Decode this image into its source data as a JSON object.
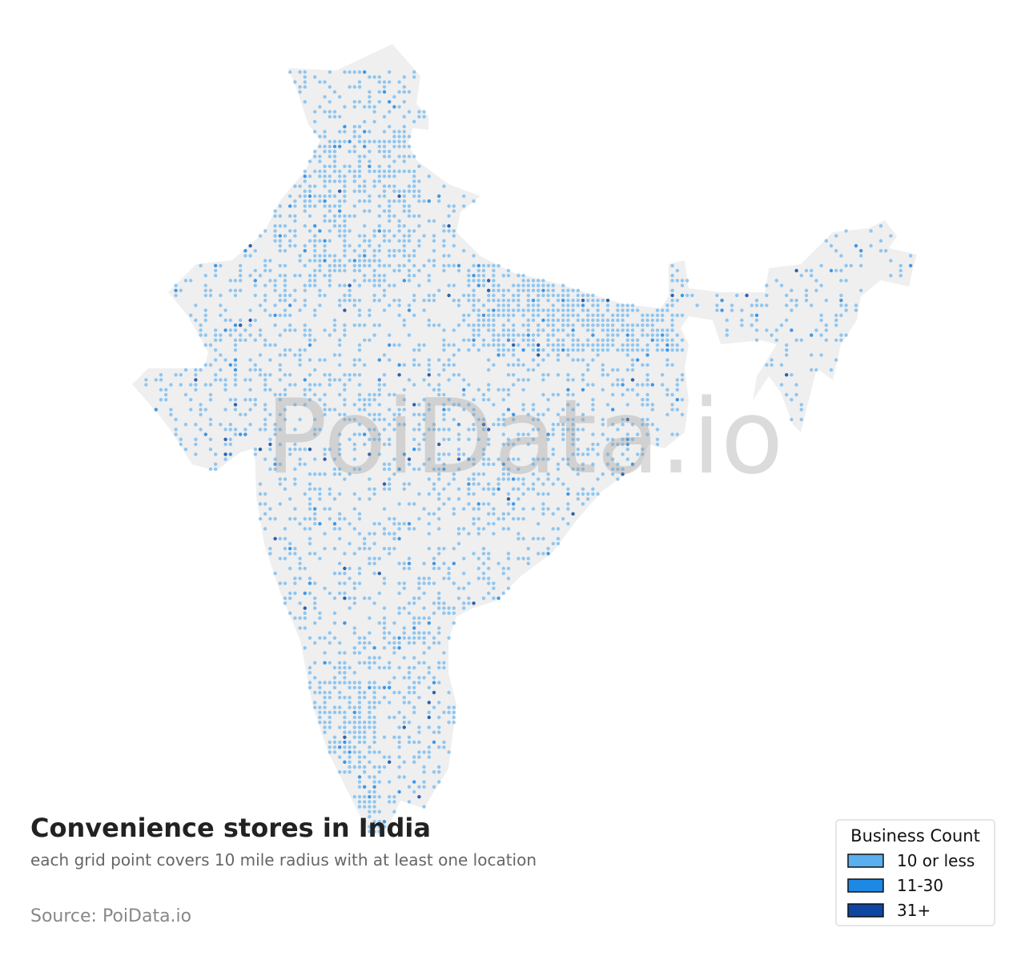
{
  "header": {
    "title": "Convenience stores in India",
    "subtitle": "each grid point covers 10 mile radius with at least one location",
    "source": "Source: PoiData.io"
  },
  "watermark": "PoiData.io",
  "legend": {
    "title": "Business Count",
    "items": [
      {
        "label": "10 or less",
        "color": "#5aafef"
      },
      {
        "label": "11-30",
        "color": "#1e88e5"
      },
      {
        "label": "31+",
        "color": "#0d47a1"
      }
    ]
  }
}
